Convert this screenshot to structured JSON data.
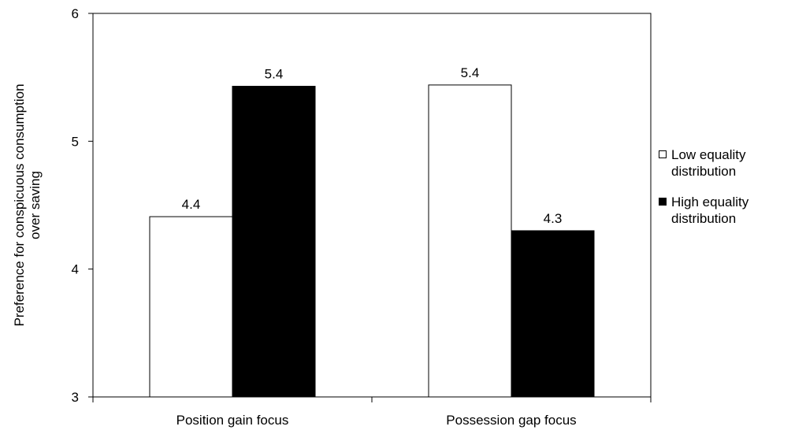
{
  "chart_data": {
    "type": "bar",
    "title": "",
    "xlabel": "",
    "ylabel": "Preference for conspicuous consumption over saving",
    "ylabel_lines": [
      "Preference for conspicuous consumption",
      "over saving"
    ],
    "ylim": [
      3,
      6
    ],
    "yticks": [
      3,
      4,
      5,
      6
    ],
    "ytick_labels": [
      "3",
      "4",
      "5",
      "6"
    ],
    "grid": false,
    "legend_position": "right",
    "categories": [
      "Position gain focus",
      "Possession gap focus"
    ],
    "series": [
      {
        "name": "Low equality distribution",
        "fill": "#ffffff",
        "values": [
          4.41,
          5.44
        ],
        "labels": [
          "4.4",
          "5.4"
        ]
      },
      {
        "name": "High equality distribution",
        "fill": "#000000",
        "values": [
          5.43,
          4.3
        ],
        "labels": [
          "5.4",
          "4.3"
        ]
      }
    ]
  },
  "colors": {
    "axis": "#000000",
    "text": "#000000",
    "background": "#ffffff"
  }
}
